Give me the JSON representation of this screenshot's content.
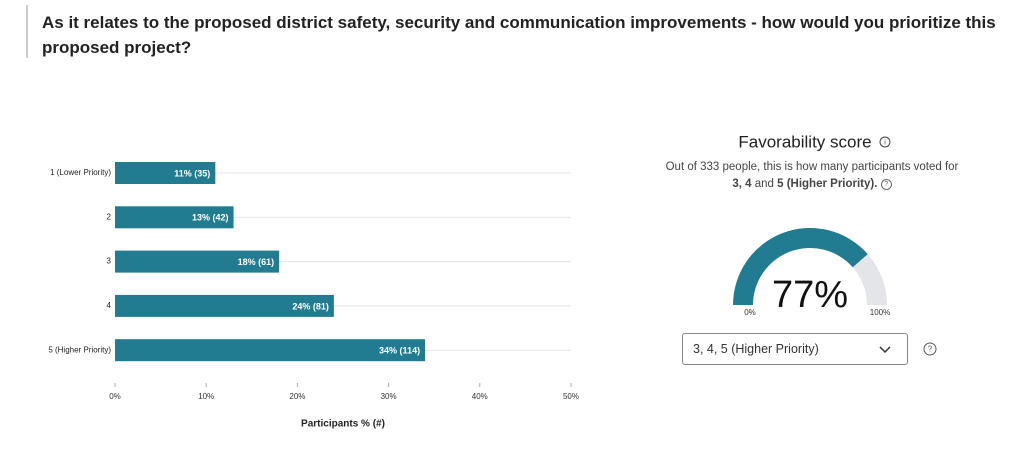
{
  "question": "As it relates to the proposed district safety, security and communication improvements - how would you prioritize this proposed project?",
  "chart_data": {
    "type": "bar",
    "orientation": "horizontal",
    "categories": [
      "1 (Lower Priority)",
      "2",
      "3",
      "4",
      "5 (Higher Priority)"
    ],
    "values": [
      11,
      13,
      18,
      24,
      34
    ],
    "value_labels": [
      "11% (35)",
      "13% (42)",
      "18% (61)",
      "24% (81)",
      "34% (114)"
    ],
    "color": "#227c91",
    "xlim": [
      0,
      50
    ],
    "xticks": [
      {
        "value": 0,
        "label": "0%"
      },
      {
        "value": 10,
        "label": "10%"
      },
      {
        "value": 20,
        "label": "20%"
      },
      {
        "value": 30,
        "label": "30%"
      },
      {
        "value": 40,
        "label": "40%"
      },
      {
        "value": 50,
        "label": "50%"
      }
    ],
    "xlabel": "Participants % (#)",
    "grid": true
  },
  "favorability": {
    "title": "Favorability score",
    "description": [
      "Out of 333 people, this is how many participants voted for ",
      "3, 4",
      " and ",
      "5 (Higher Priority)."
    ],
    "value": 77,
    "value_label": "77%",
    "range": [
      {
        "value": 0,
        "label": "0%"
      },
      {
        "value": 100,
        "label": "100%"
      }
    ],
    "color": "#227c91",
    "track_color": "#e4e5e8",
    "selected": "3, 4, 5 (Higher Priority)"
  }
}
